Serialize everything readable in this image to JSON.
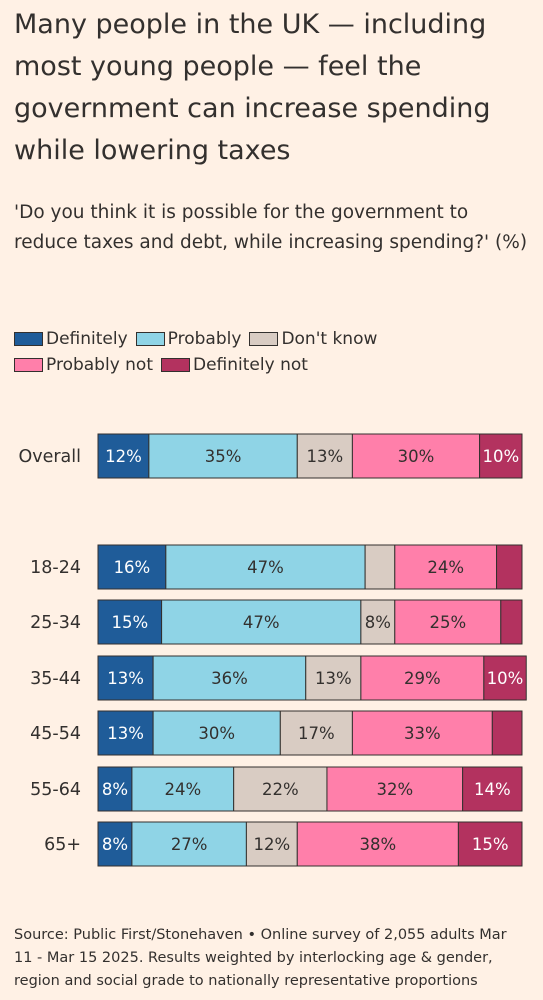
{
  "title": "Many people in the UK — including most young people — feel the government can increase spending while lowering taxes",
  "subtitle": "'Do you think it is possible for the government to reduce taxes and debt, while increasing spending?' (%)",
  "source": "Source: Public First/Stonehaven • Online survey of 2,055 adults Mar 11 - Mar 15 2025. Results weighted by interlocking age & gender, region and social grade to nationally representative proportions",
  "colors": {
    "definitely": "#1f5c99",
    "probably": "#8fd4e6",
    "dont_know": "#d9ccc3",
    "probably_not": "#ff7faa",
    "definitely_not": "#b3325f",
    "background": "#fff1e5",
    "text": "#33302e"
  },
  "chart_data": {
    "type": "bar",
    "orientation": "horizontal",
    "stacked": true,
    "xlim": [
      0,
      100
    ],
    "legend_placement": "top-left",
    "categories": [
      "Overall",
      "18-24",
      "25-34",
      "35-44",
      "45-54",
      "55-64",
      "65+"
    ],
    "series": [
      {
        "name": "Definitely",
        "color": "#1f5c99",
        "label_color": "#ffffff",
        "values": [
          12,
          16,
          15,
          13,
          13,
          8,
          8
        ],
        "labels": [
          "12%",
          "16%",
          "15%",
          "13%",
          "13%",
          "8%",
          "8%"
        ]
      },
      {
        "name": "Probably",
        "color": "#8fd4e6",
        "label_color": "#33302e",
        "values": [
          35,
          47,
          47,
          36,
          30,
          24,
          27
        ],
        "labels": [
          "35%",
          "47%",
          "47%",
          "36%",
          "30%",
          "24%",
          "27%"
        ]
      },
      {
        "name": "Don't know",
        "color": "#d9ccc3",
        "label_color": "#33302e",
        "values": [
          13,
          7,
          8,
          13,
          17,
          22,
          12
        ],
        "labels": [
          "13%",
          "",
          "8%",
          "13%",
          "17%",
          "22%",
          "12%"
        ]
      },
      {
        "name": "Probably not",
        "color": "#ff7faa",
        "label_color": "#33302e",
        "values": [
          30,
          24,
          25,
          29,
          33,
          32,
          38
        ],
        "labels": [
          "30%",
          "24%",
          "25%",
          "29%",
          "33%",
          "32%",
          "38%"
        ]
      },
      {
        "name": "Definitely not",
        "color": "#b3325f",
        "label_color": "#ffffff",
        "values": [
          10,
          6,
          5,
          10,
          7,
          14,
          15
        ],
        "labels": [
          "10%",
          "",
          "",
          "10%",
          "",
          "14%",
          "15%"
        ]
      }
    ]
  }
}
